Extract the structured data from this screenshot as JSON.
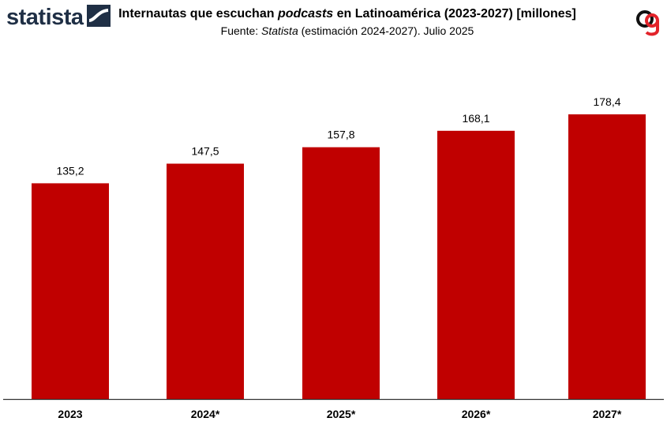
{
  "header": {
    "logo_text": "statista",
    "title_pre": "Internautas que escuchan ",
    "title_em": "podcasts",
    "title_post": " en Latinoamérica (2023-2027) [millones]",
    "subtitle_pre": "Fuente: ",
    "subtitle_em": "Statista",
    "subtitle_post": " (estimación 2024-2027). Julio 2025"
  },
  "colors": {
    "bar": "#c00000",
    "logo": "#1f2f45",
    "brand_red": "#e2232a"
  },
  "icons": {
    "statista_mark": "statista-logo-icon",
    "brand": "brand-logo-icon"
  },
  "chart_data": {
    "type": "bar",
    "categories": [
      "2023",
      "2024*",
      "2025*",
      "2026*",
      "2027*"
    ],
    "values": [
      135.2,
      147.5,
      157.8,
      168.1,
      178.4
    ],
    "value_labels": [
      "135,2",
      "147,5",
      "157,8",
      "168,1",
      "178,4"
    ],
    "ylim": [
      0,
      200
    ],
    "grid": false,
    "legend": "none"
  }
}
